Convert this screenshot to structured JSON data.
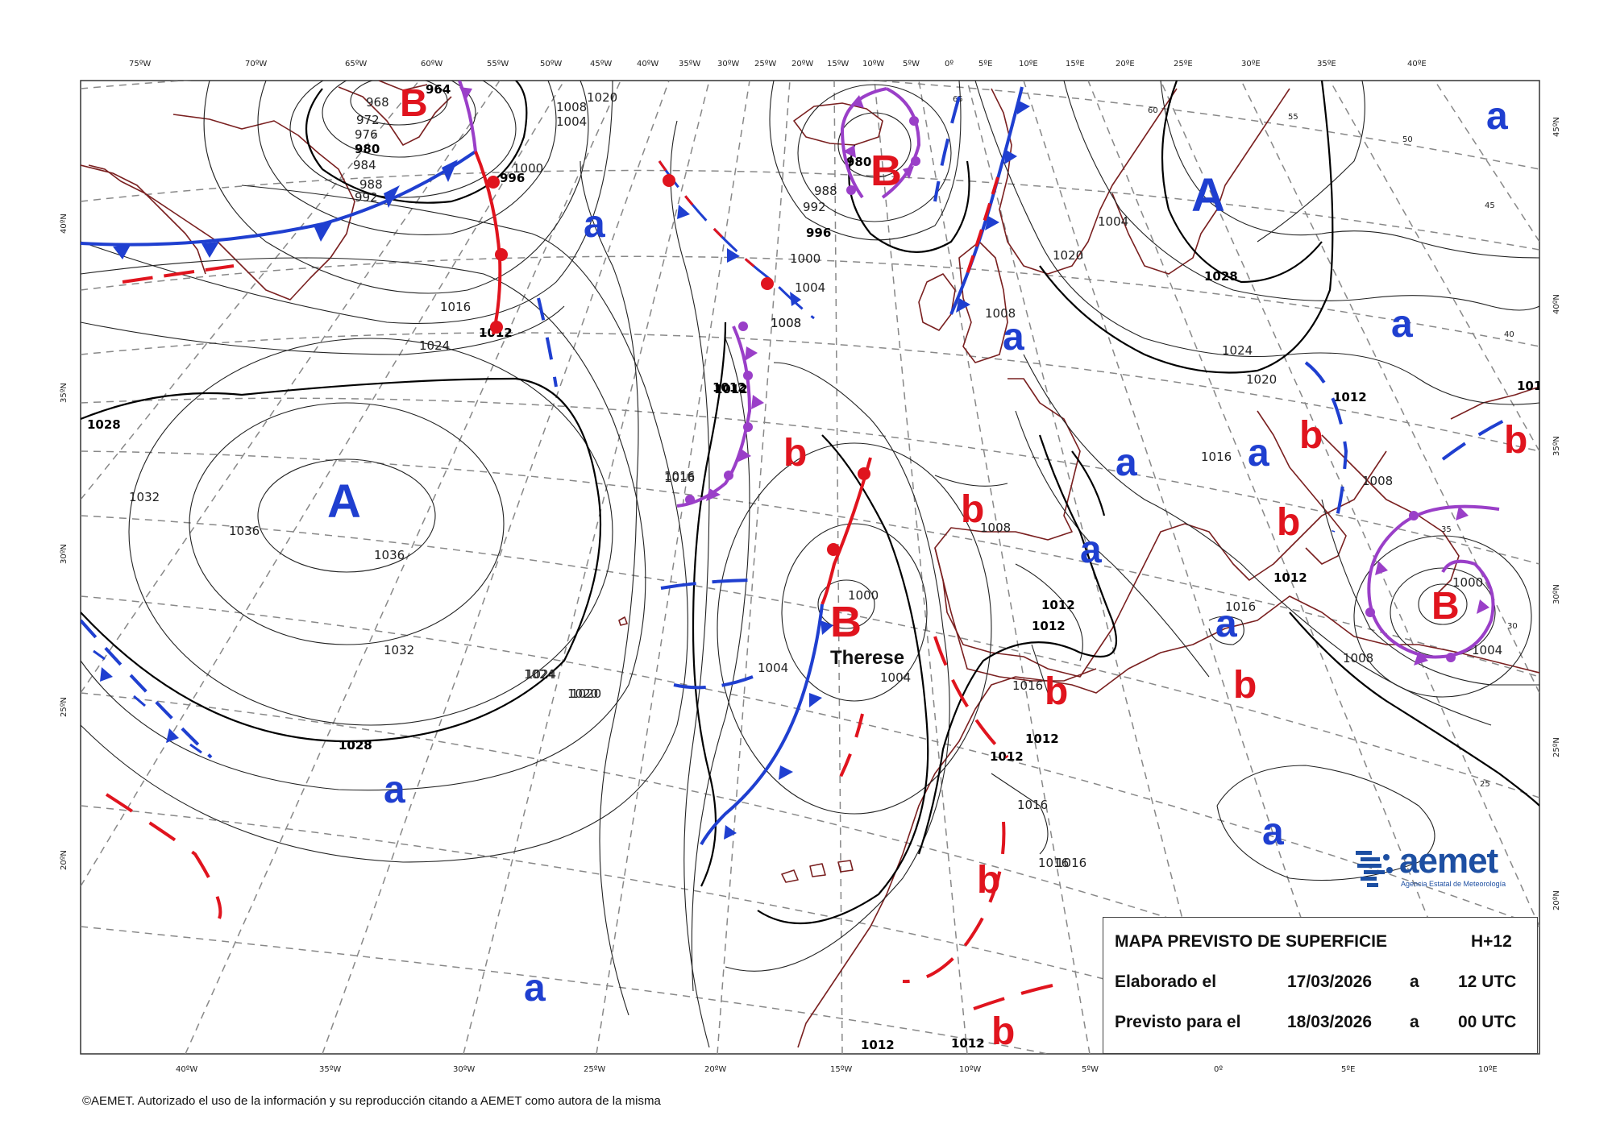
{
  "map": {
    "top_longitudes": [
      "75ºW",
      "70ºW",
      "65ºW",
      "60ºW",
      "55ºW",
      "50ºW",
      "45ºW",
      "40ºW",
      "35ºW",
      "30ºW",
      "25ºW",
      "20ºW",
      "15ºW",
      "10ºW",
      "5ºW",
      "0º",
      "5ºE",
      "10ºE",
      "15ºE",
      "20ºE",
      "25ºE",
      "30ºE",
      "35ºE",
      "40ºE"
    ],
    "bottom_longitudes": [
      "40ºW",
      "35ºW",
      "30ºW",
      "25ºW",
      "20ºW",
      "15ºW",
      "10ºW",
      "5ºW",
      "0º",
      "5ºE",
      "10ºE"
    ],
    "left_latitudes": [
      "40ºN",
      "35ºN",
      "30ºN",
      "25ºN",
      "20ºN"
    ],
    "right_latitudes": [
      "45ºN",
      "40ºN",
      "35ºN",
      "30ºN",
      "25ºN",
      "20ºN"
    ],
    "pressure_centers": [
      {
        "label": "A",
        "color": "#1f3fd0"
      },
      {
        "label": "A",
        "color": "#1f3fd0"
      },
      {
        "label": "B",
        "color": "#e0141e"
      },
      {
        "label": "B",
        "color": "#e0141e"
      },
      {
        "label": "B",
        "color": "#e0141e"
      },
      {
        "label": "B",
        "color": "#e0141e"
      },
      {
        "label": "a",
        "color": "#1f3fd0"
      },
      {
        "label": "a",
        "color": "#1f3fd0"
      },
      {
        "label": "a",
        "color": "#1f3fd0"
      },
      {
        "label": "a",
        "color": "#1f3fd0"
      },
      {
        "label": "a",
        "color": "#1f3fd0"
      },
      {
        "label": "a",
        "color": "#1f3fd0"
      },
      {
        "label": "a",
        "color": "#1f3fd0"
      },
      {
        "label": "a",
        "color": "#1f3fd0"
      },
      {
        "label": "a",
        "color": "#1f3fd0"
      },
      {
        "label": "a",
        "color": "#1f3fd0"
      },
      {
        "label": "a",
        "color": "#1f3fd0"
      },
      {
        "label": "b",
        "color": "#e0141e"
      },
      {
        "label": "b",
        "color": "#e0141e"
      },
      {
        "label": "b",
        "color": "#e0141e"
      },
      {
        "label": "b",
        "color": "#e0141e"
      },
      {
        "label": "b",
        "color": "#e0141e"
      },
      {
        "label": "b",
        "color": "#e0141e"
      },
      {
        "label": "b",
        "color": "#e0141e"
      },
      {
        "label": "b",
        "color": "#e0141e"
      },
      {
        "label": "b",
        "color": "#e0141e"
      }
    ],
    "storm_name": "Therese",
    "isobar_labels": [
      "964",
      "968",
      "972",
      "976",
      "980",
      "984",
      "988",
      "992",
      "996",
      "1000",
      "1004",
      "1008",
      "1012",
      "1016",
      "1020",
      "1024",
      "1028",
      "1032",
      "1036",
      "980",
      "988",
      "992",
      "996",
      "1000",
      "1004",
      "1008",
      "1012",
      "1016",
      "1020",
      "1024",
      "1028",
      "1012",
      "1016",
      "1008",
      "1012",
      "1008",
      "1004",
      "1000",
      "1004",
      "1008",
      "1012",
      "1016",
      "1020",
      "1024",
      "1028",
      "1032",
      "1036",
      "1012",
      "1012",
      "1012",
      "1012",
      "1016",
      "1016",
      "1016",
      "1016",
      "1008",
      "1004",
      "1000",
      "1012",
      "1012",
      "1020",
      "1024",
      "1028",
      "1016",
      "1020",
      "1008",
      "1004",
      "1012"
    ],
    "lat_grid_labels": [
      "55",
      "50",
      "45",
      "40",
      "35",
      "30",
      "25",
      "65",
      "60"
    ],
    "front_colors": {
      "cold": "#1f3fd0",
      "warm": "#e0141e",
      "occluded": "#9a3fc8",
      "trough": "#1f3fd0"
    }
  },
  "info": {
    "title": "MAPA PREVISTO DE SUPERFICIE",
    "step": "H+12",
    "made_label": "Elaborado el",
    "made_date": "17/03/2026",
    "made_sep": "a",
    "made_time": "12 UTC",
    "valid_label": "Previsto para el",
    "valid_date": "18/03/2026",
    "valid_sep": "a",
    "valid_time": "00 UTC"
  },
  "logo": {
    "name": "aemet",
    "subtitle": "Agencia Estatal de Meteorología"
  },
  "copyright": "©AEMET. Autorizado el uso de la información y su reproducción citando a AEMET como autora de la misma"
}
